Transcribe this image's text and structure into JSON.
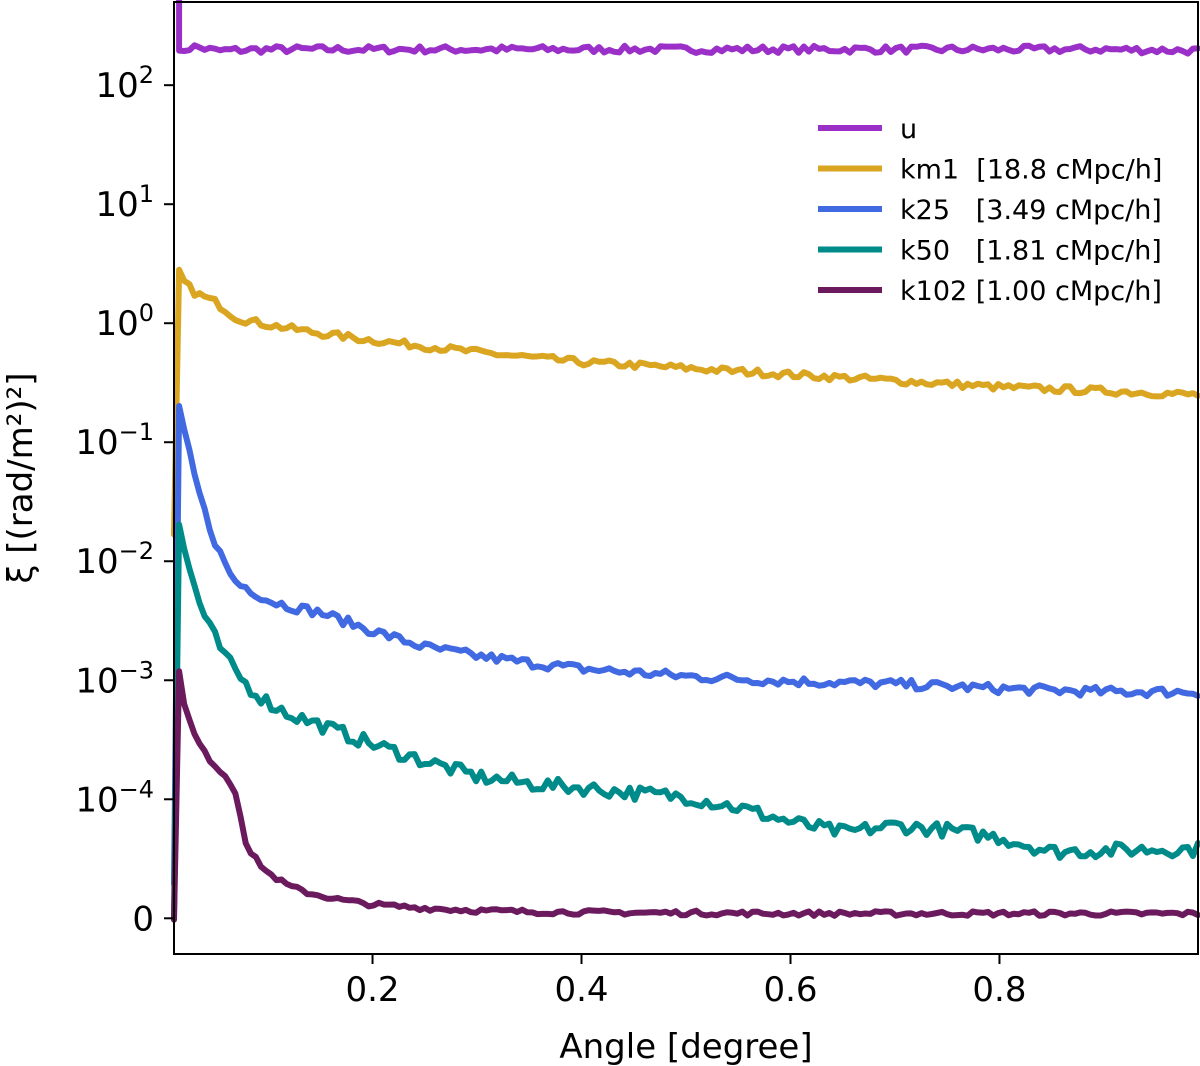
{
  "chart_data": {
    "type": "line",
    "xlabel": "Angle [degree]",
    "ylabel": "ξ [(rad/m²)²]",
    "xlim": [
      0.01,
      0.99
    ],
    "y_scale": "symlog",
    "y_linthresh": 0.0001,
    "ylim": [
      -3e-05,
      500
    ],
    "x_ticks": [
      {
        "value": 0.2,
        "label": "0.2"
      },
      {
        "value": 0.4,
        "label": "0.4"
      },
      {
        "value": 0.6,
        "label": "0.6"
      },
      {
        "value": 0.8,
        "label": "0.8"
      }
    ],
    "y_ticks": [
      {
        "value": 0,
        "label": "0",
        "sup": ""
      },
      {
        "value": 0.0001,
        "label": "10",
        "sup": "−4"
      },
      {
        "value": 0.001,
        "label": "10",
        "sup": "−3"
      },
      {
        "value": 0.01,
        "label": "10",
        "sup": "−2"
      },
      {
        "value": 0.1,
        "label": "10",
        "sup": "−1"
      },
      {
        "value": 1,
        "label": "10",
        "sup": "0"
      },
      {
        "value": 10,
        "label": "10",
        "sup": "1"
      },
      {
        "value": 100,
        "label": "10",
        "sup": "2"
      }
    ],
    "legend_position": "upper-right",
    "series": [
      {
        "name": "u",
        "legend_label": "u",
        "color": "#9b30c8",
        "x": [
          0.01,
          0.02,
          0.03,
          0.05,
          0.1,
          0.2,
          0.3,
          0.4,
          0.5,
          0.6,
          0.7,
          0.8,
          0.9,
          0.99
        ],
        "y": [
          170,
          200,
          210,
          195,
          200,
          200,
          200,
          200,
          200,
          200,
          200,
          200,
          200,
          195
        ],
        "noise": 0.03
      },
      {
        "name": "km1",
        "legend_label": "km1  [18.8 cMpc/h]",
        "color": "#daa520",
        "x": [
          0.01,
          0.02,
          0.03,
          0.05,
          0.07,
          0.1,
          0.15,
          0.2,
          0.3,
          0.4,
          0.5,
          0.6,
          0.7,
          0.8,
          0.9,
          0.99
        ],
        "y": [
          3.2,
          2.2,
          1.8,
          1.5,
          1.1,
          0.97,
          0.82,
          0.72,
          0.57,
          0.47,
          0.42,
          0.37,
          0.33,
          0.29,
          0.27,
          0.25
        ],
        "noise": 0.03
      },
      {
        "name": "k25",
        "legend_label": "k25   [3.49 cMpc/h]",
        "color": "#4169e1",
        "x": [
          0.01,
          0.02,
          0.03,
          0.04,
          0.05,
          0.06,
          0.07,
          0.08,
          0.1,
          0.12,
          0.15,
          0.2,
          0.25,
          0.3,
          0.35,
          0.4,
          0.5,
          0.6,
          0.7,
          0.8,
          0.9,
          0.99
        ],
        "y": [
          0.28,
          0.12,
          0.05,
          0.025,
          0.014,
          0.009,
          0.0065,
          0.006,
          0.0047,
          0.0042,
          0.0037,
          0.0026,
          0.0019,
          0.0016,
          0.0014,
          0.00125,
          0.00108,
          0.00098,
          0.00093,
          0.00085,
          0.0008,
          0.0008
        ],
        "noise": 0.04
      },
      {
        "name": "k50",
        "legend_label": "k50   [1.81 cMpc/h]",
        "color": "#008b8b",
        "x": [
          0.01,
          0.02,
          0.03,
          0.04,
          0.05,
          0.06,
          0.08,
          0.1,
          0.12,
          0.15,
          0.2,
          0.25,
          0.3,
          0.35,
          0.4,
          0.45,
          0.5,
          0.55,
          0.6,
          0.65,
          0.7,
          0.75,
          0.8,
          0.85,
          0.9,
          0.95,
          0.99
        ],
        "y": [
          0.035,
          0.012,
          0.006,
          0.0032,
          0.0022,
          0.0015,
          0.0009,
          0.00065,
          0.00052,
          0.00042,
          0.00029,
          0.00021,
          0.000155,
          0.000135,
          0.000125,
          0.000113,
          0.000105,
          9.3e-05,
          8.1e-05,
          7.2e-05,
          7.8e-05,
          7.4e-05,
          6.8e-05,
          5.6e-05,
          5.7e-05,
          5.8e-05,
          5.8e-05
        ],
        "noise": 0.06
      },
      {
        "name": "k102",
        "legend_label": "k102 [1.00 cMpc/h]",
        "color": "#6b1a5e",
        "x": [
          0.01,
          0.015,
          0.02,
          0.03,
          0.04,
          0.05,
          0.06,
          0.07,
          0.08,
          0.09,
          0.1,
          0.12,
          0.14,
          0.17,
          0.2,
          0.25,
          0.3,
          0.35,
          0.4,
          0.5,
          0.6,
          0.7,
          0.8,
          0.9,
          0.99
        ],
        "y": [
          0.0045,
          0.0012,
          0.0006,
          0.00034,
          0.00024,
          0.00019,
          0.000155,
          0.00011,
          5.8e-05,
          4.8e-05,
          3.8e-05,
          2.7e-05,
          2.1e-05,
          1.53e-05,
          1.15e-05,
          8.5e-06,
          6.5e-06,
          5.5e-06,
          5e-06,
          4.5e-06,
          4e-06,
          4e-06,
          4e-06,
          4e-06,
          3.9e-06
        ],
        "noise": 0.02
      }
    ]
  }
}
